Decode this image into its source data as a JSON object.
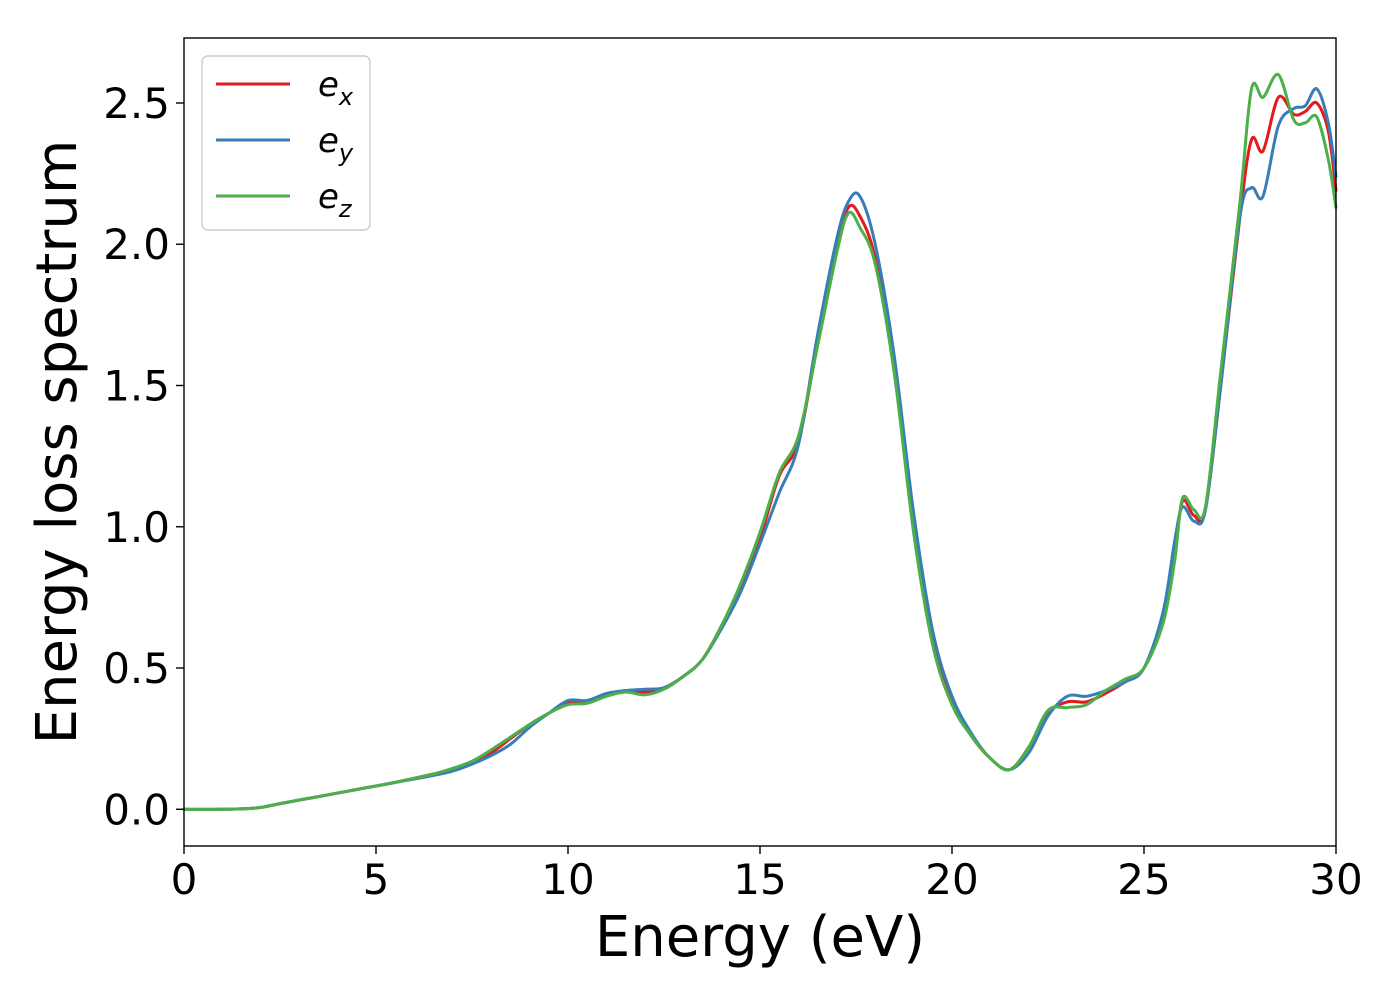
{
  "chart_data": {
    "type": "line",
    "xlabel": "Energy (eV)",
    "ylabel": "Energy loss spectrum",
    "xlim": [
      0,
      30
    ],
    "ylim": [
      -0.13,
      2.73
    ],
    "xticks": [
      0,
      5,
      10,
      15,
      20,
      25,
      30
    ],
    "yticks": [
      0.0,
      0.5,
      1.0,
      1.5,
      2.0,
      2.5
    ],
    "xtick_labels": [
      "0",
      "5",
      "10",
      "15",
      "20",
      "25",
      "30"
    ],
    "ytick_labels": [
      "0.0",
      "0.5",
      "1.0",
      "1.5",
      "2.0",
      "2.5"
    ],
    "grid": false,
    "legend_position": "top-left",
    "x": [
      0,
      1,
      1.9,
      2.5,
      3.5,
      4.5,
      5.5,
      6.5,
      7,
      7.5,
      8,
      8.5,
      9,
      9.5,
      10,
      10.5,
      11,
      11.5,
      12,
      12.5,
      13,
      13.5,
      14,
      14.5,
      15,
      15.5,
      16,
      16.5,
      17,
      17.3,
      17.6,
      18,
      18.5,
      19,
      19.5,
      20,
      20.5,
      21,
      21.5,
      22,
      22.5,
      23,
      23.5,
      24,
      24.5,
      25,
      25.5,
      25.8,
      26,
      26.3,
      26.6,
      27,
      27.5,
      27.8,
      28.1,
      28.5,
      28.9,
      29.2,
      29.5,
      29.8,
      30
    ],
    "series": [
      {
        "name": "e_x",
        "label_base": "e",
        "label_sub": "x",
        "color": "#e41a1c",
        "values": [
          0,
          0,
          0.005,
          0.02,
          0.045,
          0.07,
          0.095,
          0.125,
          0.14,
          0.165,
          0.2,
          0.25,
          0.3,
          0.34,
          0.375,
          0.38,
          0.405,
          0.42,
          0.415,
          0.43,
          0.47,
          0.53,
          0.65,
          0.79,
          0.96,
          1.18,
          1.3,
          1.65,
          1.98,
          2.13,
          2.1,
          1.95,
          1.55,
          1.0,
          0.6,
          0.38,
          0.26,
          0.18,
          0.14,
          0.22,
          0.34,
          0.38,
          0.38,
          0.41,
          0.45,
          0.5,
          0.68,
          0.9,
          1.09,
          1.04,
          1.06,
          1.5,
          2.1,
          2.37,
          2.33,
          2.52,
          2.46,
          2.47,
          2.5,
          2.4,
          2.19
        ]
      },
      {
        "name": "e_y",
        "label_base": "e",
        "label_sub": "y",
        "color": "#377eb8",
        "values": [
          0,
          0,
          0.005,
          0.02,
          0.045,
          0.07,
          0.095,
          0.12,
          0.135,
          0.16,
          0.19,
          0.23,
          0.29,
          0.34,
          0.385,
          0.385,
          0.41,
          0.42,
          0.425,
          0.43,
          0.47,
          0.53,
          0.64,
          0.77,
          0.94,
          1.12,
          1.29,
          1.68,
          2.02,
          2.15,
          2.17,
          2.0,
          1.6,
          1.05,
          0.63,
          0.4,
          0.27,
          0.18,
          0.14,
          0.2,
          0.33,
          0.4,
          0.4,
          0.42,
          0.45,
          0.5,
          0.7,
          0.95,
          1.07,
          1.02,
          1.06,
          1.5,
          2.1,
          2.2,
          2.17,
          2.42,
          2.48,
          2.49,
          2.55,
          2.43,
          2.24
        ]
      },
      {
        "name": "e_z",
        "label_base": "e",
        "label_sub": "z",
        "color": "#4daf4a",
        "values": [
          0,
          0,
          0.005,
          0.02,
          0.045,
          0.07,
          0.095,
          0.125,
          0.145,
          0.17,
          0.21,
          0.255,
          0.3,
          0.34,
          0.37,
          0.375,
          0.4,
          0.415,
          0.405,
          0.425,
          0.47,
          0.53,
          0.65,
          0.8,
          0.98,
          1.19,
          1.32,
          1.64,
          1.97,
          2.11,
          2.06,
          1.93,
          1.54,
          0.98,
          0.58,
          0.37,
          0.26,
          0.18,
          0.14,
          0.22,
          0.35,
          0.36,
          0.37,
          0.42,
          0.46,
          0.5,
          0.66,
          0.88,
          1.1,
          1.06,
          1.07,
          1.55,
          2.15,
          2.55,
          2.52,
          2.6,
          2.44,
          2.43,
          2.45,
          2.3,
          2.13
        ]
      }
    ]
  }
}
